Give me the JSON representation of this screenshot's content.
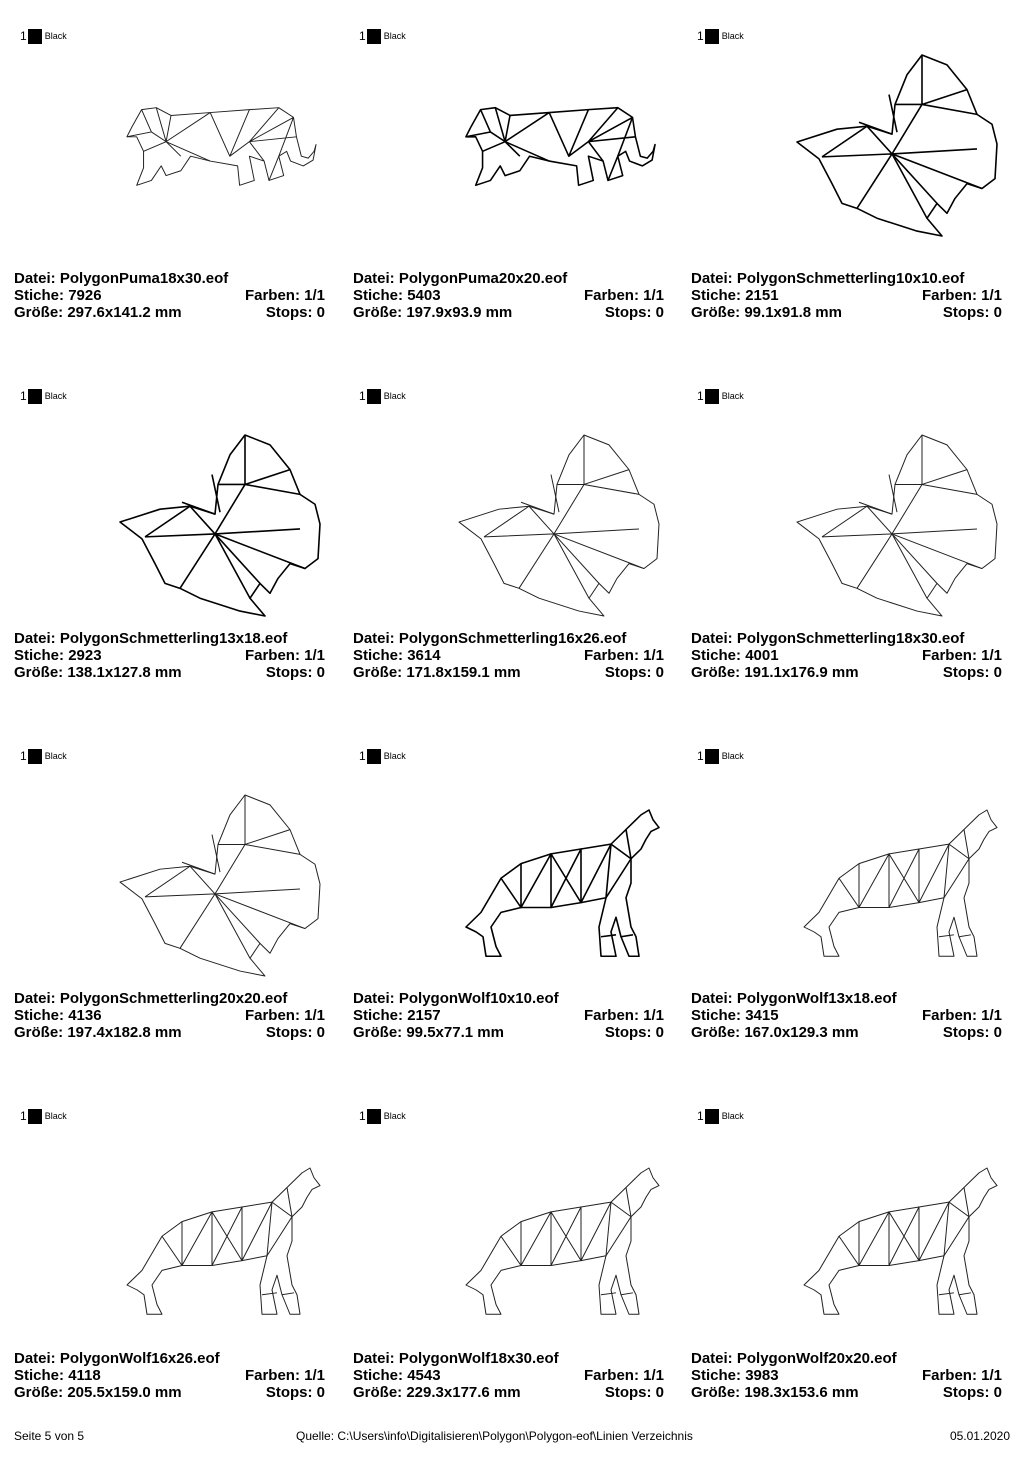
{
  "cells": [
    {
      "motif": "puma",
      "bold": false,
      "color_index": "1",
      "color_name": "Black",
      "file_label": "Datei:",
      "file": "PolygonPuma18x30.eof",
      "stitches_label": "Stiche:",
      "stitches": "7926",
      "colors_label": "Farben:",
      "colors": "1/1",
      "size_label": "Größe:",
      "size": "297.6x141.2 mm",
      "stops_label": "Stops:",
      "stops": "0"
    },
    {
      "motif": "puma",
      "bold": true,
      "color_index": "1",
      "color_name": "Black",
      "file_label": "Datei:",
      "file": "PolygonPuma20x20.eof",
      "stitches_label": "Stiche:",
      "stitches": "5403",
      "colors_label": "Farben:",
      "colors": "1/1",
      "size_label": "Größe:",
      "size": "197.9x93.9 mm",
      "stops_label": "Stops:",
      "stops": "0"
    },
    {
      "motif": "butterfly",
      "bold": true,
      "color_index": "1",
      "color_name": "Black",
      "file_label": "Datei:",
      "file": "PolygonSchmetterling10x10.eof",
      "stitches_label": "Stiche:",
      "stitches": "2151",
      "colors_label": "Farben:",
      "colors": "1/1",
      "size_label": "Größe:",
      "size": "99.1x91.8 mm",
      "stops_label": "Stops:",
      "stops": "0"
    },
    {
      "motif": "butterfly",
      "bold": true,
      "color_index": "1",
      "color_name": "Black",
      "file_label": "Datei:",
      "file": "PolygonSchmetterling13x18.eof",
      "stitches_label": "Stiche:",
      "stitches": "2923",
      "colors_label": "Farben:",
      "colors": "1/1",
      "size_label": "Größe:",
      "size": "138.1x127.8 mm",
      "stops_label": "Stops:",
      "stops": "0"
    },
    {
      "motif": "butterfly",
      "bold": false,
      "color_index": "1",
      "color_name": "Black",
      "file_label": "Datei:",
      "file": "PolygonSchmetterling16x26.eof",
      "stitches_label": "Stiche:",
      "stitches": "3614",
      "colors_label": "Farben:",
      "colors": "1/1",
      "size_label": "Größe:",
      "size": "171.8x159.1 mm",
      "stops_label": "Stops:",
      "stops": "0"
    },
    {
      "motif": "butterfly",
      "bold": false,
      "color_index": "1",
      "color_name": "Black",
      "file_label": "Datei:",
      "file": "PolygonSchmetterling18x30.eof",
      "stitches_label": "Stiche:",
      "stitches": "4001",
      "colors_label": "Farben:",
      "colors": "1/1",
      "size_label": "Größe:",
      "size": "191.1x176.9 mm",
      "stops_label": "Stops:",
      "stops": "0"
    },
    {
      "motif": "butterfly",
      "bold": false,
      "color_index": "1",
      "color_name": "Black",
      "file_label": "Datei:",
      "file": "PolygonSchmetterling20x20.eof",
      "stitches_label": "Stiche:",
      "stitches": "4136",
      "colors_label": "Farben:",
      "colors": "1/1",
      "size_label": "Größe:",
      "size": "197.4x182.8 mm",
      "stops_label": "Stops:",
      "stops": "0"
    },
    {
      "motif": "wolf",
      "bold": true,
      "color_index": "1",
      "color_name": "Black",
      "file_label": "Datei:",
      "file": "PolygonWolf10x10.eof",
      "stitches_label": "Stiche:",
      "stitches": "2157",
      "colors_label": "Farben:",
      "colors": "1/1",
      "size_label": "Größe:",
      "size": "99.5x77.1 mm",
      "stops_label": "Stops:",
      "stops": "0"
    },
    {
      "motif": "wolf",
      "bold": false,
      "color_index": "1",
      "color_name": "Black",
      "file_label": "Datei:",
      "file": "PolygonWolf13x18.eof",
      "stitches_label": "Stiche:",
      "stitches": "3415",
      "colors_label": "Farben:",
      "colors": "1/1",
      "size_label": "Größe:",
      "size": "167.0x129.3 mm",
      "stops_label": "Stops:",
      "stops": "0"
    },
    {
      "motif": "wolf",
      "bold": false,
      "color_index": "1",
      "color_name": "Black",
      "file_label": "Datei:",
      "file": "PolygonWolf16x26.eof",
      "stitches_label": "Stiche:",
      "stitches": "4118",
      "colors_label": "Farben:",
      "colors": "1/1",
      "size_label": "Größe:",
      "size": "205.5x159.0 mm",
      "stops_label": "Stops:",
      "stops": "0"
    },
    {
      "motif": "wolf",
      "bold": false,
      "color_index": "1",
      "color_name": "Black",
      "file_label": "Datei:",
      "file": "PolygonWolf18x30.eof",
      "stitches_label": "Stiche:",
      "stitches": "4543",
      "colors_label": "Farben:",
      "colors": "1/1",
      "size_label": "Größe:",
      "size": "229.3x177.6 mm",
      "stops_label": "Stops:",
      "stops": "0"
    },
    {
      "motif": "wolf",
      "bold": false,
      "color_index": "1",
      "color_name": "Black",
      "file_label": "Datei:",
      "file": "PolygonWolf20x20.eof",
      "stitches_label": "Stiche:",
      "stitches": "3983",
      "colors_label": "Farben:",
      "colors": "1/1",
      "size_label": "Größe:",
      "size": "198.3x153.6 mm",
      "stops_label": "Stops:",
      "stops": "0"
    }
  ],
  "footer": {
    "page": "Seite 5 von 5",
    "source": "Quelle: C:\\Users\\info\\Digitalisieren\\Polygon\\Polygon-eof\\Linien Verzeichnis",
    "date": "05.01.2020"
  }
}
